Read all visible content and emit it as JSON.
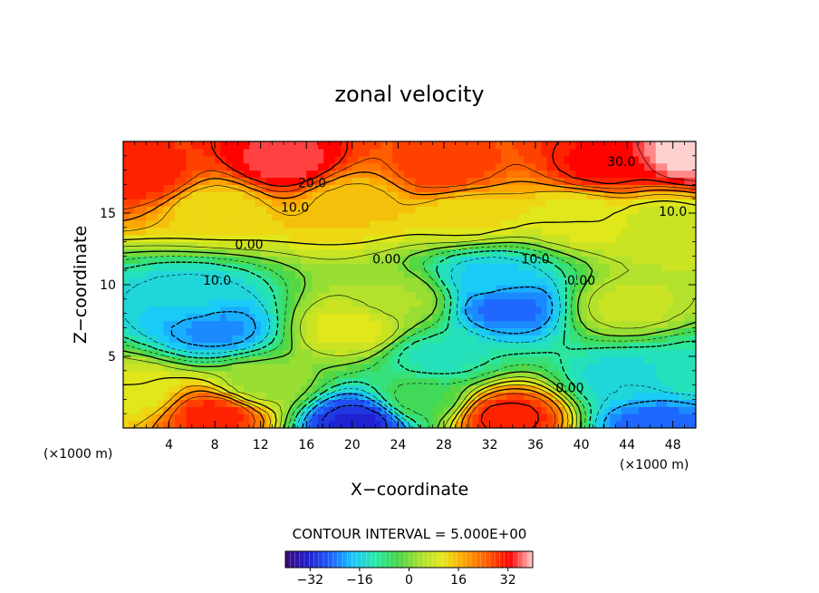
{
  "chart_data": {
    "type": "contour",
    "title": "zonal velocity",
    "xlabel": "X−coordinate",
    "ylabel": "Z−coordinate",
    "x_units_left": "(×1000 m)",
    "x_units_right": "(×1000 m)",
    "xlim": [
      0,
      50
    ],
    "ylim": [
      0,
      20
    ],
    "x_ticks": [
      4,
      8,
      12,
      16,
      20,
      24,
      28,
      32,
      36,
      40,
      44,
      48
    ],
    "x_tick_labels": [
      "4",
      "8",
      "12",
      "16",
      "20",
      "24",
      "28",
      "32",
      "36",
      "40",
      "44",
      "48"
    ],
    "y_ticks": [
      5,
      10,
      15
    ],
    "y_tick_labels": [
      "5",
      "10",
      "15"
    ],
    "contour_interval_text": "CONTOUR INTERVAL = 5.000E+00",
    "contour_labels": [
      {
        "text": "30.0",
        "x": 43.5,
        "y": 18.3
      },
      {
        "text": "20.0",
        "x": 16.5,
        "y": 16.8
      },
      {
        "text": "10.0",
        "x": 15.0,
        "y": 15.1
      },
      {
        "text": "10.0",
        "x": 48.0,
        "y": 14.8
      },
      {
        "text": "0.00",
        "x": 11.0,
        "y": 12.5
      },
      {
        "text": "0.00",
        "x": 23.0,
        "y": 11.5
      },
      {
        "text": "10.0",
        "x": 36.0,
        "y": 11.5
      },
      {
        "text": "0.00",
        "x": 40.0,
        "y": 10.0
      },
      {
        "text": "10.0",
        "x": 8.2,
        "y": 10.0
      },
      {
        "text": "0.00",
        "x": 39.0,
        "y": 2.5
      }
    ],
    "colorbar": {
      "ticks": [
        -32,
        -16,
        0,
        16,
        32
      ],
      "tick_labels": [
        "−32",
        "−16",
        "0",
        "16",
        "32"
      ],
      "range": [
        -40,
        40
      ]
    },
    "features": [
      {
        "x": 2.0,
        "y": 17.5,
        "value": 30
      },
      {
        "x": 14.0,
        "y": 18.5,
        "value": 35
      },
      {
        "x": 28.0,
        "y": 18.0,
        "value": 28
      },
      {
        "x": 42.0,
        "y": 18.2,
        "value": 32
      },
      {
        "x": 49.5,
        "y": 19.0,
        "value": 40
      },
      {
        "x": 8.0,
        "y": 15.5,
        "value": 12
      },
      {
        "x": 20.0,
        "y": 15.8,
        "value": 14
      },
      {
        "x": 30.0,
        "y": 15.0,
        "value": 12
      },
      {
        "x": 40.0,
        "y": 15.0,
        "value": 10
      },
      {
        "x": 47.0,
        "y": 14.5,
        "value": 8
      },
      {
        "x": 8.0,
        "y": 7.0,
        "value": -22
      },
      {
        "x": 6.0,
        "y": 9.0,
        "value": -16
      },
      {
        "x": 33.5,
        "y": 8.5,
        "value": -25
      },
      {
        "x": 32.0,
        "y": 10.5,
        "value": -17
      },
      {
        "x": 20.0,
        "y": 7.0,
        "value": 10
      },
      {
        "x": 24.0,
        "y": 9.0,
        "value": 4
      },
      {
        "x": 44.0,
        "y": 8.5,
        "value": 7
      },
      {
        "x": 27.5,
        "y": 5.0,
        "value": -12
      },
      {
        "x": 44.0,
        "y": 3.5,
        "value": -15
      },
      {
        "x": 8.0,
        "y": 1.0,
        "value": 30
      },
      {
        "x": 33.5,
        "y": 0.8,
        "value": 31
      },
      {
        "x": 20.5,
        "y": 0.5,
        "value": -32
      },
      {
        "x": 46.5,
        "y": 0.3,
        "value": -25
      },
      {
        "x": 0.8,
        "y": 2.5,
        "value": 10
      },
      {
        "x": 49.5,
        "y": 4.0,
        "value": -12
      },
      {
        "x": 12.0,
        "y": 3.0,
        "value": 3
      },
      {
        "x": 26.0,
        "y": 2.0,
        "value": -4
      }
    ]
  },
  "colors": {
    "scale": [
      "#3a0a78",
      "#2020d0",
      "#1e60ff",
      "#19c8ff",
      "#28e8a8",
      "#46d646",
      "#a8e030",
      "#e8e818",
      "#ffa000",
      "#ff5a00",
      "#ff0000",
      "#ffd0d0"
    ]
  }
}
